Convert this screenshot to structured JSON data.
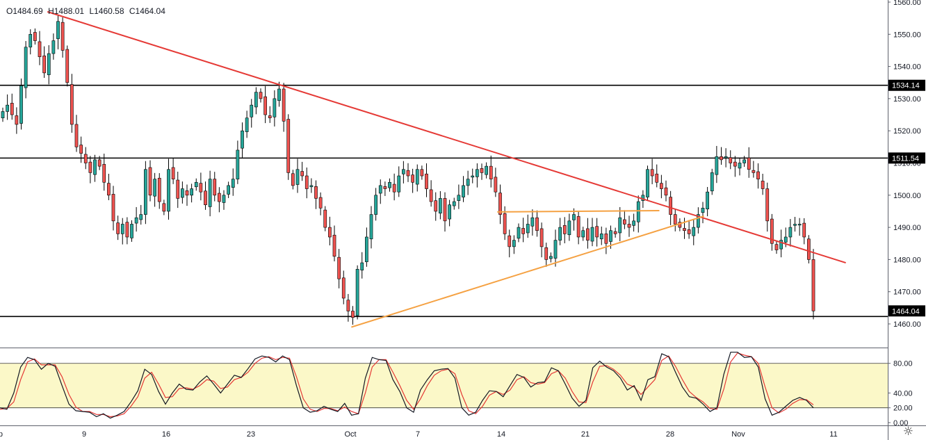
{
  "ohlc": {
    "open": "O1484.69",
    "high": "H1488.01",
    "low": "L1460.58",
    "close": "C1464.04"
  },
  "icons": {
    "settings": "gear-icon"
  },
  "colors": {
    "up": "#26a69a",
    "down": "#ef5350",
    "trendline": "#e53935",
    "triangle": "#f5a142",
    "level": "#000000",
    "k_line": "#131722",
    "d_line": "#e53935",
    "band": "#fbf8c8"
  },
  "chart_data": [
    {
      "type": "candlestick",
      "title": "",
      "x_ticks": [
        "p",
        "9",
        "16",
        "23",
        "Oct",
        "7",
        "14",
        "21",
        "28",
        "Nov",
        "11"
      ],
      "y_ticks": [
        "1460.00",
        "1470.00",
        "1480.00",
        "1490.00",
        "1500.00",
        "1510.00",
        "1520.00",
        "1530.00",
        "1540.00",
        "1550.00",
        "1560.00"
      ],
      "ylim": [
        1457,
        1562
      ],
      "price_labels": [
        "1534.14",
        "1511.54",
        "1464.04"
      ],
      "last_close": 1464.04,
      "horizontal_levels": [
        1534.14,
        1511.54,
        1462.3
      ],
      "trendlines": [
        {
          "name": "descending-resistance",
          "color": "#e53935",
          "points": [
            [
              "Sep 5",
              1557
            ],
            [
              "Nov 12",
              1479
            ]
          ]
        },
        {
          "name": "triangle-support",
          "color": "#f5a142",
          "points": [
            [
              "Oct 1",
              1459
            ],
            [
              "Oct 31",
              1493.5
            ]
          ]
        },
        {
          "name": "triangle-top",
          "color": "#f5a142",
          "points": [
            [
              "Oct 14",
              1494.8
            ],
            [
              "Oct 28",
              1495.2
            ]
          ]
        }
      ],
      "series": [
        {
          "values": [
            1526,
            1528,
            1525,
            1522,
            1534,
            1546,
            1550,
            1548,
            1543,
            1538,
            1544,
            1548,
            1554,
            1545,
            1535,
            1522,
            1515,
            1513,
            1510,
            1507,
            1511,
            1509,
            1504,
            1500,
            1492,
            1488,
            1491,
            1487,
            1491,
            1493,
            1494,
            1508,
            1500,
            1505,
            1498,
            1495,
            1508,
            1505,
            1499,
            1502,
            1500,
            1502,
            1504,
            1501,
            1497,
            1505,
            1500,
            1498,
            1500,
            1503,
            1505,
            1514,
            1520,
            1524,
            1528,
            1532,
            1530,
            1525,
            1524,
            1530,
            1533,
            1523,
            1507,
            1503,
            1508,
            1506,
            1502,
            1503,
            1499,
            1496,
            1490,
            1487,
            1481,
            1474,
            1468,
            1464,
            1462,
            1477,
            1479,
            1487,
            1494,
            1500,
            1503,
            1502,
            1504,
            1501,
            1506,
            1508,
            1506,
            1504,
            1508,
            1506,
            1502,
            1498,
            1495,
            1499,
            1492,
            1497,
            1498,
            1500,
            1503,
            1505,
            1506,
            1508,
            1507,
            1509,
            1505,
            1501,
            1494,
            1488,
            1484,
            1486,
            1490,
            1488,
            1491,
            1493,
            1489,
            1484,
            1480,
            1481,
            1486,
            1490,
            1488,
            1492,
            1494,
            1487,
            1489,
            1486,
            1490,
            1487,
            1488,
            1485,
            1489,
            1488,
            1493,
            1491,
            1490,
            1492,
            1498,
            1500,
            1508,
            1506,
            1504,
            1502,
            1500,
            1494,
            1491,
            1490,
            1489,
            1488,
            1490,
            1494,
            1496,
            1501,
            1507,
            1512,
            1511,
            1512,
            1510,
            1509,
            1510,
            1511,
            1508,
            1507,
            1505,
            1502,
            1492,
            1485,
            1483,
            1486,
            1487,
            1490,
            1491,
            1491,
            1487,
            1480,
            1464.04
          ]
        }
      ],
      "oscillator": {
        "y_ticks": [
          "0.00",
          "20.00",
          "40.00",
          "80.00"
        ],
        "ylim": [
          -2,
          100
        ],
        "bands": [
          20,
          80
        ],
        "k": [
          20,
          18,
          40,
          75,
          88,
          85,
          72,
          80,
          76,
          50,
          25,
          16,
          15,
          14,
          8,
          12,
          6,
          10,
          15,
          28,
          43,
          72,
          65,
          42,
          25,
          40,
          52,
          45,
          44,
          55,
          63,
          52,
          40,
          52,
          64,
          61,
          73,
          86,
          90,
          88,
          82,
          90,
          85,
          50,
          20,
          14,
          16,
          22,
          18,
          15,
          26,
          10,
          12,
          60,
          88,
          85,
          84,
          58,
          42,
          20,
          14,
          44,
          58,
          70,
          72,
          73,
          60,
          20,
          10,
          14,
          30,
          43,
          42,
          35,
          50,
          65,
          61,
          48,
          54,
          55,
          74,
          70,
          52,
          33,
          22,
          30,
          74,
          83,
          75,
          70,
          60,
          44,
          50,
          30,
          58,
          62,
          93,
          89,
          68,
          48,
          35,
          33,
          25,
          15,
          20,
          65,
          95,
          95,
          88,
          89,
          75,
          32,
          10,
          14,
          22,
          30,
          34,
          30,
          20
        ],
        "d": [
          18,
          19,
          28,
          58,
          82,
          86,
          78,
          78,
          78,
          62,
          38,
          21,
          15,
          15,
          11,
          11,
          8,
          9,
          12,
          22,
          35,
          60,
          68,
          52,
          34,
          35,
          46,
          47,
          45,
          50,
          58,
          56,
          46,
          48,
          58,
          61,
          68,
          80,
          87,
          89,
          85,
          88,
          87,
          62,
          32,
          18,
          15,
          19,
          19,
          16,
          21,
          15,
          12,
          40,
          75,
          85,
          85,
          68,
          50,
          30,
          18,
          32,
          50,
          64,
          70,
          72,
          66,
          38,
          16,
          12,
          22,
          37,
          42,
          38,
          44,
          58,
          62,
          54,
          52,
          54,
          66,
          70,
          60,
          42,
          28,
          27,
          55,
          76,
          77,
          72,
          64,
          52,
          48,
          38,
          48,
          58,
          84,
          90,
          76,
          58,
          42,
          34,
          28,
          19,
          18,
          45,
          82,
          94,
          91,
          89,
          80,
          48,
          20,
          13,
          18,
          26,
          31,
          31,
          24
        ]
      }
    }
  ]
}
